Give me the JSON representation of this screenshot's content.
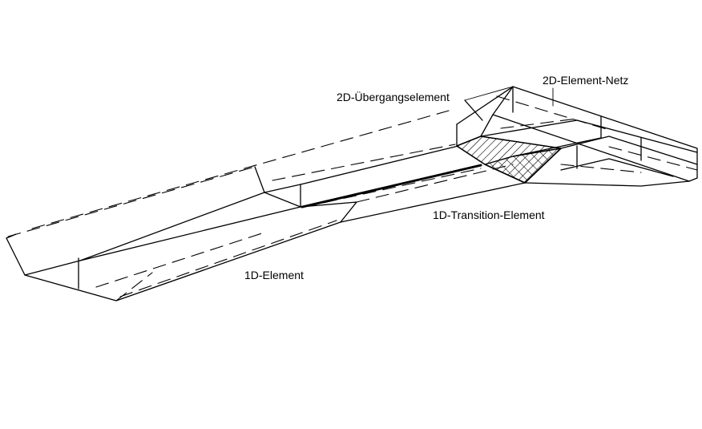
{
  "labels": {
    "one_d_element": "1D-Element",
    "one_d_transition": "1D-Transition-Element",
    "two_d_transition": "2D-Übergangselement",
    "two_d_mesh": "2D-Element-Netz"
  },
  "colors": {
    "line": "#000000",
    "background": "#ffffff"
  }
}
